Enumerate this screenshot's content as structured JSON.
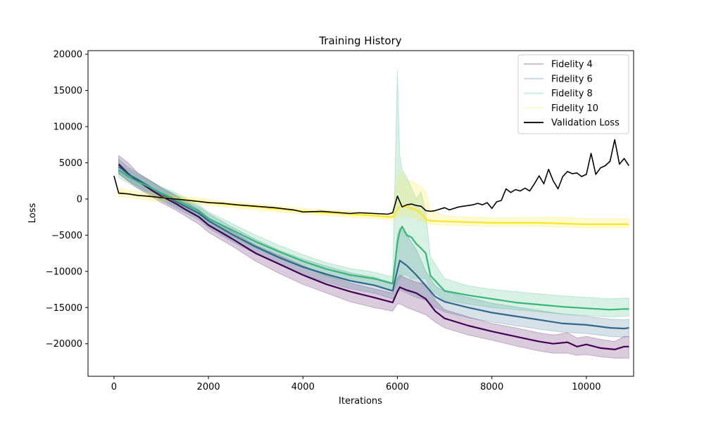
{
  "chart_data": {
    "type": "line",
    "title": "Training History",
    "xlabel": "Iterations",
    "ylabel": "Loss",
    "xlim": [
      -550,
      11000
    ],
    "ylim": [
      -24500,
      20500
    ],
    "xticks": [
      0,
      2000,
      4000,
      6000,
      8000,
      10000
    ],
    "yticks": [
      -20000,
      -15000,
      -10000,
      -5000,
      0,
      5000,
      10000,
      15000,
      20000
    ],
    "grid": false,
    "legend_position": "top-right",
    "series": [
      {
        "name": "Fidelity 4",
        "color": "#440154",
        "x": [
          100,
          300,
          500,
          800,
          1000,
          1300,
          1500,
          1800,
          2000,
          2500,
          3000,
          3500,
          4000,
          4500,
          5000,
          5500,
          5900,
          6000,
          6050,
          6200,
          6400,
          6600,
          6800,
          7000,
          7500,
          8000,
          8500,
          9000,
          9300,
          9600,
          9800,
          10000,
          10300,
          10600,
          10800,
          10900
        ],
        "values": [
          4800,
          3500,
          2500,
          1200,
          400,
          -600,
          -1400,
          -2500,
          -3600,
          -5500,
          -7500,
          -9000,
          -10500,
          -11800,
          -12800,
          -13600,
          -14300,
          -12800,
          -12200,
          -12600,
          -13000,
          -13800,
          -15500,
          -16500,
          -17500,
          -18300,
          -19000,
          -19700,
          -20000,
          -19800,
          -20400,
          -20100,
          -20600,
          -20800,
          -20400,
          -20400
        ],
        "band_low": [
          3500,
          2500,
          1500,
          300,
          -500,
          -1500,
          -2300,
          -3500,
          -4600,
          -6500,
          -8600,
          -10300,
          -11800,
          -13000,
          -14200,
          -15000,
          -15500,
          -14500,
          -14500,
          -15000,
          -15500,
          -16000,
          -17000,
          -17800,
          -18800,
          -19500,
          -20300,
          -21000,
          -21300,
          -21300,
          -21600,
          -21500,
          -21800,
          -22000,
          -22000,
          -22000
        ],
        "band_high": [
          6000,
          5000,
          3600,
          2400,
          1500,
          500,
          -300,
          -1500,
          -2600,
          -4500,
          -6400,
          -7800,
          -9200,
          -10600,
          -11600,
          -12400,
          -13000,
          -11000,
          -10500,
          -11000,
          -11500,
          -11800,
          -14000,
          -15300,
          -16300,
          -17200,
          -17800,
          -18500,
          -18800,
          -18500,
          -19200,
          -19000,
          -19400,
          -19700,
          -19000,
          -19000
        ]
      },
      {
        "name": "Fidelity 6",
        "color": "#31688e",
        "x": [
          100,
          300,
          500,
          800,
          1000,
          1300,
          1500,
          1800,
          2000,
          2500,
          3000,
          3500,
          4000,
          4500,
          5000,
          5500,
          5900,
          6000,
          6050,
          6200,
          6400,
          6600,
          6800,
          7000,
          7500,
          8000,
          8500,
          9000,
          9500,
          10000,
          10500,
          10800,
          10900
        ],
        "values": [
          4500,
          3400,
          2700,
          1500,
          700,
          -300,
          -1000,
          -2000,
          -3000,
          -4900,
          -6600,
          -8100,
          -9400,
          -10400,
          -11300,
          -11900,
          -12700,
          -9800,
          -8500,
          -9200,
          -10500,
          -12000,
          -13500,
          -14200,
          -15000,
          -15700,
          -16200,
          -16700,
          -17200,
          -17400,
          -17800,
          -17900,
          -17800
        ],
        "band_low": [
          3500,
          2500,
          1800,
          600,
          -200,
          -1200,
          -1900,
          -2900,
          -4000,
          -5900,
          -7600,
          -9100,
          -10500,
          -11500,
          -12400,
          -13000,
          -13800,
          -13000,
          -12500,
          -13000,
          -13600,
          -14000,
          -15000,
          -15600,
          -16400,
          -17000,
          -17500,
          -18000,
          -18400,
          -18600,
          -19000,
          -19100,
          -19000
        ],
        "band_high": [
          5500,
          4400,
          3600,
          2400,
          1600,
          600,
          -100,
          -1100,
          -2000,
          -3900,
          -5600,
          -7100,
          -8300,
          -9300,
          -10200,
          -10800,
          -11600,
          -5000,
          -4000,
          -5000,
          -7000,
          -10000,
          -12000,
          -12800,
          -13600,
          -14400,
          -14900,
          -15400,
          -15900,
          -16200,
          -16600,
          -16700,
          -16600
        ]
      },
      {
        "name": "Fidelity 8",
        "color": "#35b779",
        "x": [
          100,
          300,
          500,
          800,
          1000,
          1300,
          1500,
          1800,
          2000,
          2500,
          3000,
          3500,
          4000,
          4500,
          5000,
          5500,
          5900,
          6000,
          6050,
          6100,
          6200,
          6300,
          6400,
          6500,
          6600,
          6700,
          7000,
          7500,
          8000,
          8500,
          9000,
          9500,
          10000,
          10500,
          10800,
          10900
        ],
        "values": [
          4000,
          3100,
          2400,
          1500,
          800,
          0,
          -700,
          -1700,
          -2700,
          -4300,
          -5900,
          -7300,
          -8600,
          -9700,
          -10500,
          -11000,
          -11700,
          -6000,
          -4500,
          -3800,
          -5000,
          -5300,
          -6200,
          -6800,
          -7500,
          -10600,
          -12700,
          -13300,
          -13800,
          -14300,
          -14600,
          -14900,
          -15100,
          -15300,
          -15200,
          -15200
        ],
        "band_low": [
          3000,
          2200,
          1500,
          600,
          -100,
          -900,
          -1600,
          -2600,
          -3600,
          -5200,
          -6800,
          -8200,
          -9500,
          -10600,
          -11400,
          -12000,
          -12600,
          -11500,
          -11000,
          -10500,
          -10500,
          -11000,
          -11000,
          -11000,
          -11000,
          -12500,
          -14000,
          -14500,
          -15000,
          -15300,
          -15600,
          -15900,
          -16100,
          -16300,
          -16200,
          -16200
        ],
        "band_high": [
          5000,
          4000,
          3300,
          2400,
          1700,
          900,
          200,
          -800,
          -1800,
          -3400,
          -5000,
          -6400,
          -7700,
          -8800,
          -9600,
          -10100,
          -10800,
          17800,
          6000,
          4000,
          3000,
          1500,
          0,
          1000,
          -2000,
          -8000,
          -11000,
          -12000,
          -12500,
          -12800,
          -13100,
          -13400,
          -13600,
          -13800,
          -13700,
          -13700
        ]
      },
      {
        "name": "Fidelity 10",
        "color": "#fde725",
        "x": [
          100,
          300,
          500,
          800,
          1000,
          1300,
          1500,
          1800,
          2000,
          2500,
          3000,
          3500,
          4000,
          4500,
          5000,
          5500,
          5900,
          6000,
          6050,
          6100,
          6200,
          6300,
          6400,
          6500,
          6600,
          6700,
          7000,
          7500,
          8000,
          8500,
          9000,
          9500,
          10000,
          10500,
          10800,
          10900
        ],
        "values": [
          900,
          700,
          500,
          300,
          200,
          50,
          -100,
          -300,
          -500,
          -800,
          -1100,
          -1400,
          -1700,
          -1900,
          -2100,
          -2300,
          -2500,
          -1500,
          -1000,
          -900,
          -1100,
          -1300,
          -1500,
          -2000,
          -2800,
          -3000,
          -3100,
          -3200,
          -3300,
          -3300,
          -3300,
          -3400,
          -3500,
          -3500,
          -3500,
          -3500
        ],
        "band_low": [
          300,
          200,
          0,
          -200,
          -300,
          -400,
          -500,
          -700,
          -900,
          -1200,
          -1500,
          -1800,
          -2100,
          -2300,
          -2500,
          -2700,
          -2900,
          -2500,
          -2300,
          -2300,
          -2300,
          -2500,
          -2700,
          -3000,
          -3300,
          -3500,
          -3600,
          -3700,
          -3800,
          -3800,
          -3800,
          -3900,
          -4000,
          -4000,
          -4000,
          -4000
        ],
        "band_high": [
          1500,
          1200,
          1000,
          800,
          700,
          500,
          300,
          100,
          -100,
          -400,
          -700,
          -1000,
          -1300,
          -1500,
          -1700,
          -1900,
          -2100,
          2500,
          3800,
          3500,
          2500,
          2500,
          2000,
          1800,
          1000,
          -1500,
          -2300,
          -2500,
          -2600,
          -2600,
          -2500,
          -2500,
          -2700,
          -2700,
          -2700,
          -2700
        ]
      },
      {
        "name": "Validation Loss",
        "color": "#000000",
        "x": [
          0,
          100,
          300,
          500,
          700,
          1000,
          1300,
          1600,
          2000,
          2300,
          2600,
          3000,
          3400,
          3800,
          4000,
          4400,
          4800,
          5000,
          5200,
          5500,
          5800,
          5900,
          6000,
          6100,
          6200,
          6300,
          6400,
          6500,
          6600,
          6700,
          6800,
          6900,
          7000,
          7100,
          7300,
          7400,
          7600,
          7700,
          7800,
          7900,
          8000,
          8100,
          8200,
          8300,
          8400,
          8500,
          8600,
          8700,
          8800,
          8900,
          9000,
          9100,
          9200,
          9300,
          9400,
          9500,
          9600,
          9700,
          9800,
          9900,
          10000,
          10100,
          10200,
          10300,
          10400,
          10500,
          10600,
          10700,
          10800,
          10900
        ],
        "values": [
          3200,
          800,
          700,
          500,
          400,
          200,
          0,
          -200,
          -500,
          -600,
          -800,
          -1000,
          -1200,
          -1500,
          -1800,
          -1700,
          -1900,
          -2000,
          -1900,
          -2000,
          -2100,
          -1900,
          400,
          -1100,
          -800,
          -700,
          -900,
          -1000,
          -1600,
          -1700,
          -1600,
          -1400,
          -1200,
          -1500,
          -1100,
          -1000,
          -800,
          -600,
          -800,
          -500,
          -1300,
          -400,
          -200,
          1400,
          900,
          1300,
          1100,
          1500,
          1100,
          2100,
          3200,
          2100,
          4100,
          2500,
          1400,
          3100,
          3800,
          3500,
          3600,
          3100,
          3400,
          6300,
          3400,
          4300,
          4600,
          5200,
          8200,
          4800,
          5600,
          4600
        ]
      }
    ]
  }
}
